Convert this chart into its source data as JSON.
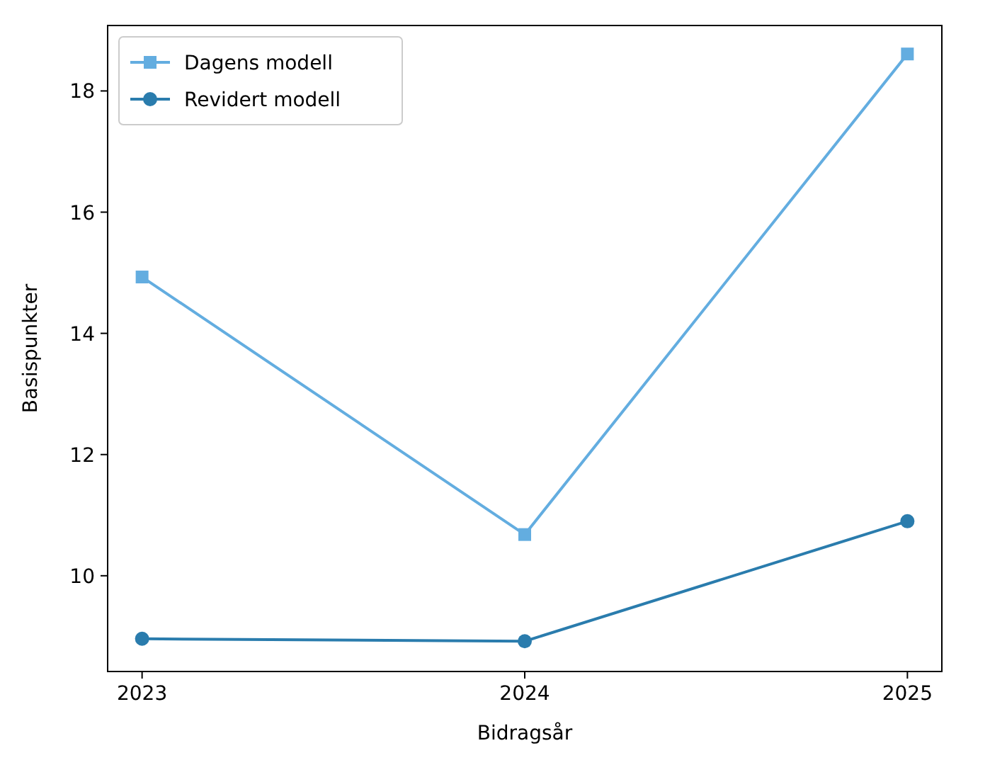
{
  "chart_data": {
    "type": "line",
    "xlabel": "Bidragsår",
    "ylabel": "Basispunkter",
    "x": [
      2023,
      2024,
      2025
    ],
    "xlim": [
      2022.91,
      2025.09
    ],
    "xticks": [
      2023,
      2024,
      2025
    ],
    "ylim": [
      8.42,
      19.08
    ],
    "yticks": [
      10,
      12,
      14,
      16,
      18
    ],
    "series": [
      {
        "name": "Dagens modell",
        "color": "#63ade0",
        "marker": "square",
        "values": [
          14.93,
          10.68,
          18.61
        ]
      },
      {
        "name": "Revidert modell",
        "color": "#2a7cad",
        "marker": "circle",
        "values": [
          8.96,
          8.92,
          10.9
        ]
      }
    ],
    "legend": "top left",
    "grid": false,
    "line_style": "solid"
  }
}
